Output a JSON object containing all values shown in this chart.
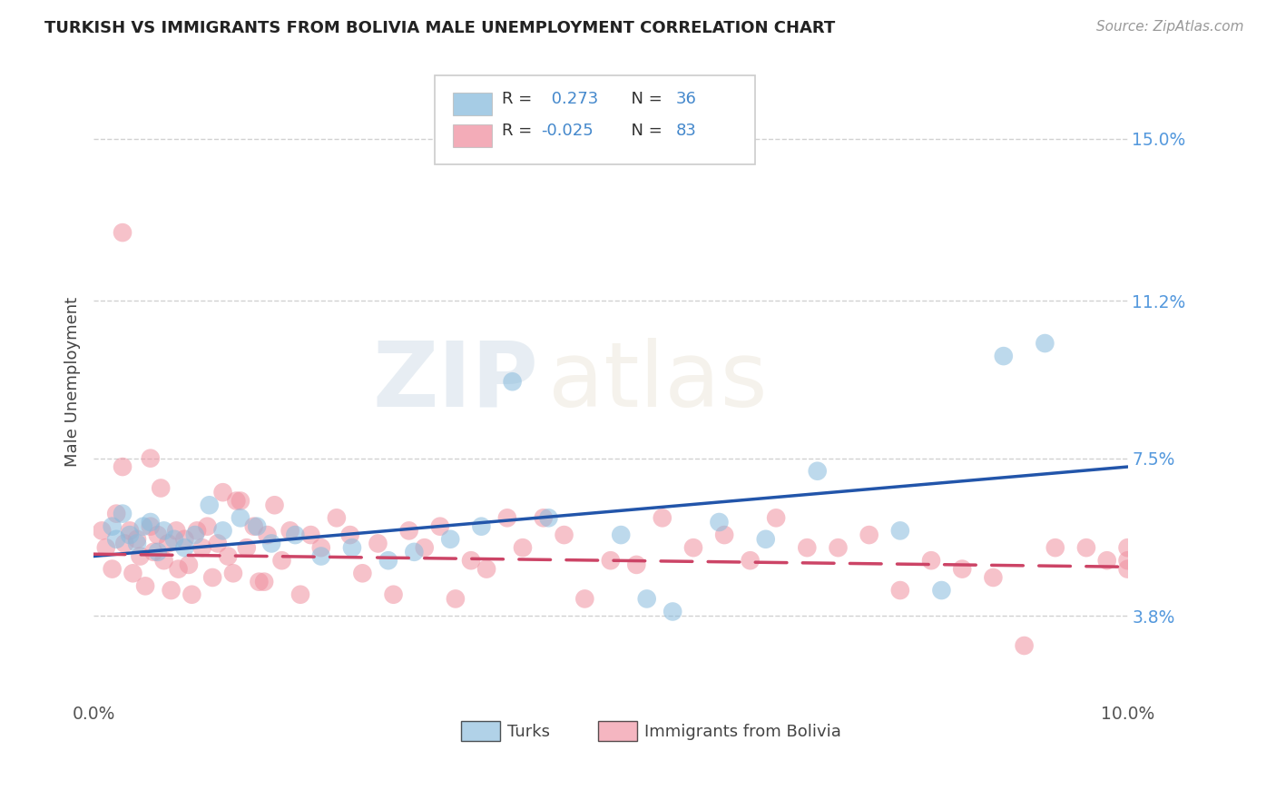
{
  "title": "TURKISH VS IMMIGRANTS FROM BOLIVIA MALE UNEMPLOYMENT CORRELATION CHART",
  "source": "Source: ZipAtlas.com",
  "ylabel": "Male Unemployment",
  "ytick_vals": [
    3.8,
    7.5,
    11.2,
    15.0
  ],
  "ytick_labels": [
    "3.8%",
    "7.5%",
    "11.2%",
    "15.0%"
  ],
  "xlim": [
    0.0,
    10.0
  ],
  "ylim": [
    1.8,
    16.8
  ],
  "turks_label": "Turks",
  "bolivia_label": "Immigrants from Bolivia",
  "turks_color": "#88bbdd",
  "bolivia_color": "#f090a0",
  "turks_line_color": "#2255aa",
  "bolivia_line_color": "#cc4466",
  "turks_R": 0.273,
  "turks_N": 36,
  "bolivia_R": -0.025,
  "bolivia_N": 83,
  "background_color": "#ffffff",
  "grid_color": "#cccccc",
  "watermark_zip": "ZIP",
  "watermark_atlas": "atlas",
  "title_color": "#222222",
  "source_color": "#999999",
  "ytick_color": "#5599dd",
  "xtick_color": "#555555",
  "ylabel_color": "#444444",
  "legend_text_color": "#333333",
  "legend_num_color": "#4488cc",
  "turks_x": [
    0.18,
    0.22,
    0.28,
    0.35,
    0.42,
    0.48,
    0.55,
    0.62,
    0.68,
    0.78,
    0.88,
    0.98,
    1.12,
    1.25,
    1.42,
    1.58,
    1.72,
    1.95,
    2.2,
    2.5,
    2.85,
    3.1,
    3.45,
    3.75,
    4.05,
    4.4,
    5.1,
    5.35,
    5.6,
    6.05,
    6.5,
    7.0,
    7.8,
    8.2,
    8.8,
    9.2
  ],
  "turks_y": [
    5.9,
    5.6,
    6.2,
    5.7,
    5.5,
    5.9,
    6.0,
    5.3,
    5.8,
    5.6,
    5.4,
    5.7,
    6.4,
    5.8,
    6.1,
    5.9,
    5.5,
    5.7,
    5.2,
    5.4,
    5.1,
    5.3,
    5.6,
    5.9,
    9.3,
    6.1,
    5.7,
    4.2,
    3.9,
    6.0,
    5.6,
    7.2,
    5.8,
    4.4,
    9.9,
    10.2
  ],
  "bolivia_x": [
    0.08,
    0.12,
    0.18,
    0.22,
    0.28,
    0.3,
    0.35,
    0.38,
    0.42,
    0.45,
    0.5,
    0.55,
    0.58,
    0.62,
    0.65,
    0.68,
    0.72,
    0.75,
    0.8,
    0.82,
    0.88,
    0.92,
    0.95,
    1.0,
    1.05,
    1.1,
    1.15,
    1.2,
    1.25,
    1.3,
    1.35,
    1.42,
    1.48,
    1.55,
    1.6,
    1.68,
    1.75,
    1.82,
    1.9,
    2.0,
    2.1,
    2.2,
    2.35,
    2.48,
    2.6,
    2.75,
    2.9,
    3.05,
    3.2,
    3.35,
    3.5,
    3.65,
    3.8,
    4.0,
    4.15,
    4.35,
    4.55,
    4.75,
    5.0,
    5.25,
    5.5,
    5.8,
    6.1,
    6.35,
    6.6,
    6.9,
    7.2,
    7.5,
    7.8,
    8.1,
    8.4,
    8.7,
    9.0,
    9.3,
    9.6,
    9.8,
    10.0,
    10.0,
    10.0,
    0.28,
    0.55,
    1.38,
    1.65
  ],
  "bolivia_y": [
    5.8,
    5.4,
    4.9,
    6.2,
    12.8,
    5.5,
    5.8,
    4.8,
    5.6,
    5.2,
    4.5,
    5.9,
    5.3,
    5.7,
    6.8,
    5.1,
    5.5,
    4.4,
    5.8,
    4.9,
    5.6,
    5.0,
    4.3,
    5.8,
    5.4,
    5.9,
    4.7,
    5.5,
    6.7,
    5.2,
    4.8,
    6.5,
    5.4,
    5.9,
    4.6,
    5.7,
    6.4,
    5.1,
    5.8,
    4.3,
    5.7,
    5.4,
    6.1,
    5.7,
    4.8,
    5.5,
    4.3,
    5.8,
    5.4,
    5.9,
    4.2,
    5.1,
    4.9,
    6.1,
    5.4,
    6.1,
    5.7,
    4.2,
    5.1,
    5.0,
    6.1,
    5.4,
    5.7,
    5.1,
    6.1,
    5.4,
    5.4,
    5.7,
    4.4,
    5.1,
    4.9,
    4.7,
    3.1,
    5.4,
    5.4,
    5.1,
    5.4,
    5.1,
    4.9,
    7.3,
    7.5,
    6.5,
    4.6
  ]
}
